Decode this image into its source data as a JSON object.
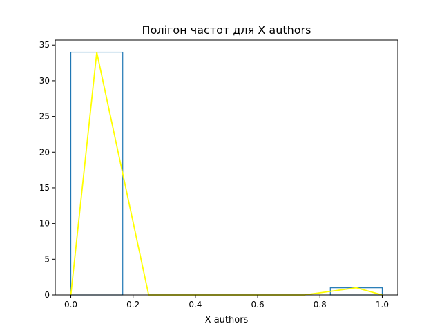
{
  "chart_data": {
    "type": "bar",
    "title": "Полігон частот для X authors",
    "xlabel": "X authors",
    "ylabel": "",
    "xlim": [
      -0.05,
      1.05
    ],
    "ylim": [
      0,
      35.7
    ],
    "grid": false,
    "x_ticks": [
      0.0,
      0.2,
      0.4,
      0.6,
      0.8,
      1.0
    ],
    "x_tick_labels": [
      "0.0",
      "0.2",
      "0.4",
      "0.6",
      "0.8",
      "1.0"
    ],
    "y_ticks": [
      0,
      5,
      10,
      15,
      20,
      25,
      30,
      35
    ],
    "y_tick_labels": [
      "0",
      "5",
      "10",
      "15",
      "20",
      "25",
      "30",
      "35"
    ],
    "histogram": {
      "name": "",
      "color": "#1f77b4",
      "fill": "none",
      "bins": [
        {
          "x0": 0.0,
          "x1": 0.1667,
          "count": 34
        },
        {
          "x0": 0.1667,
          "x1": 0.3333,
          "count": 0
        },
        {
          "x0": 0.3333,
          "x1": 0.5,
          "count": 0
        },
        {
          "x0": 0.5,
          "x1": 0.6667,
          "count": 0
        },
        {
          "x0": 0.6667,
          "x1": 0.8333,
          "count": 0
        },
        {
          "x0": 0.8333,
          "x1": 1.0,
          "count": 1
        }
      ]
    },
    "polygon": {
      "name": "",
      "color": "#ffff00",
      "x": [
        0.0,
        0.0833,
        0.25,
        0.4167,
        0.5833,
        0.75,
        0.9167,
        1.0
      ],
      "y": [
        0,
        34,
        0,
        0,
        0,
        0,
        1,
        0
      ]
    }
  }
}
